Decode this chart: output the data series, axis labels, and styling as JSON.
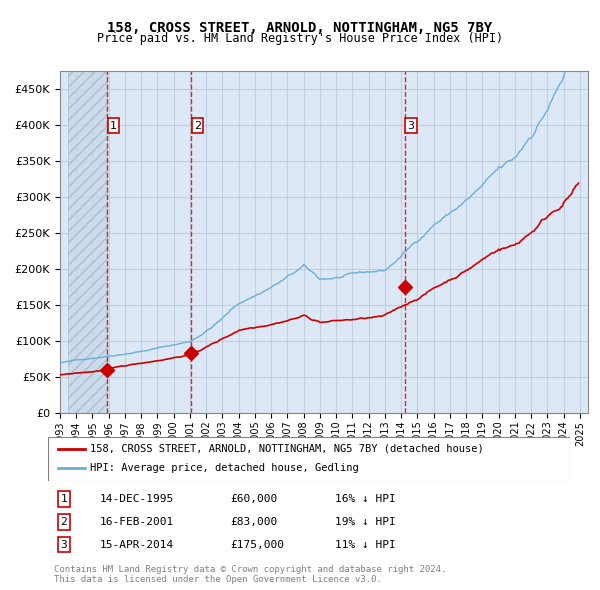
{
  "title": "158, CROSS STREET, ARNOLD, NOTTINGHAM, NG5 7BY",
  "subtitle": "Price paid vs. HM Land Registry's House Price Index (HPI)",
  "legend_property": "158, CROSS STREET, ARNOLD, NOTTINGHAM, NG5 7BY (detached house)",
  "legend_hpi": "HPI: Average price, detached house, Gedling",
  "footer": "Contains HM Land Registry data © Crown copyright and database right 2024.\nThis data is licensed under the Open Government Licence v3.0.",
  "sale_dates": [
    "1995-12-14",
    "2001-02-16",
    "2014-04-15"
  ],
  "sale_prices": [
    60000,
    83000,
    175000
  ],
  "sale_labels": [
    "1",
    "2",
    "3"
  ],
  "table_rows": [
    [
      "1",
      "14-DEC-1995",
      "£60,000",
      "16% ↓ HPI"
    ],
    [
      "2",
      "16-FEB-2001",
      "£83,000",
      "19% ↓ HPI"
    ],
    [
      "3",
      "15-APR-2014",
      "£175,000",
      "11% ↓ HPI"
    ]
  ],
  "ylim": [
    0,
    475000
  ],
  "xlim_start": 1993.5,
  "xlim_end": 2025.5,
  "hpi_color": "#6baed6",
  "property_color": "#cc0000",
  "vline_color": "#cc0000",
  "grid_color": "#c0d0e0",
  "bg_color": "#dce8f5",
  "hatch_color": "#b8c8d8",
  "plot_bg": "#eef4fb"
}
